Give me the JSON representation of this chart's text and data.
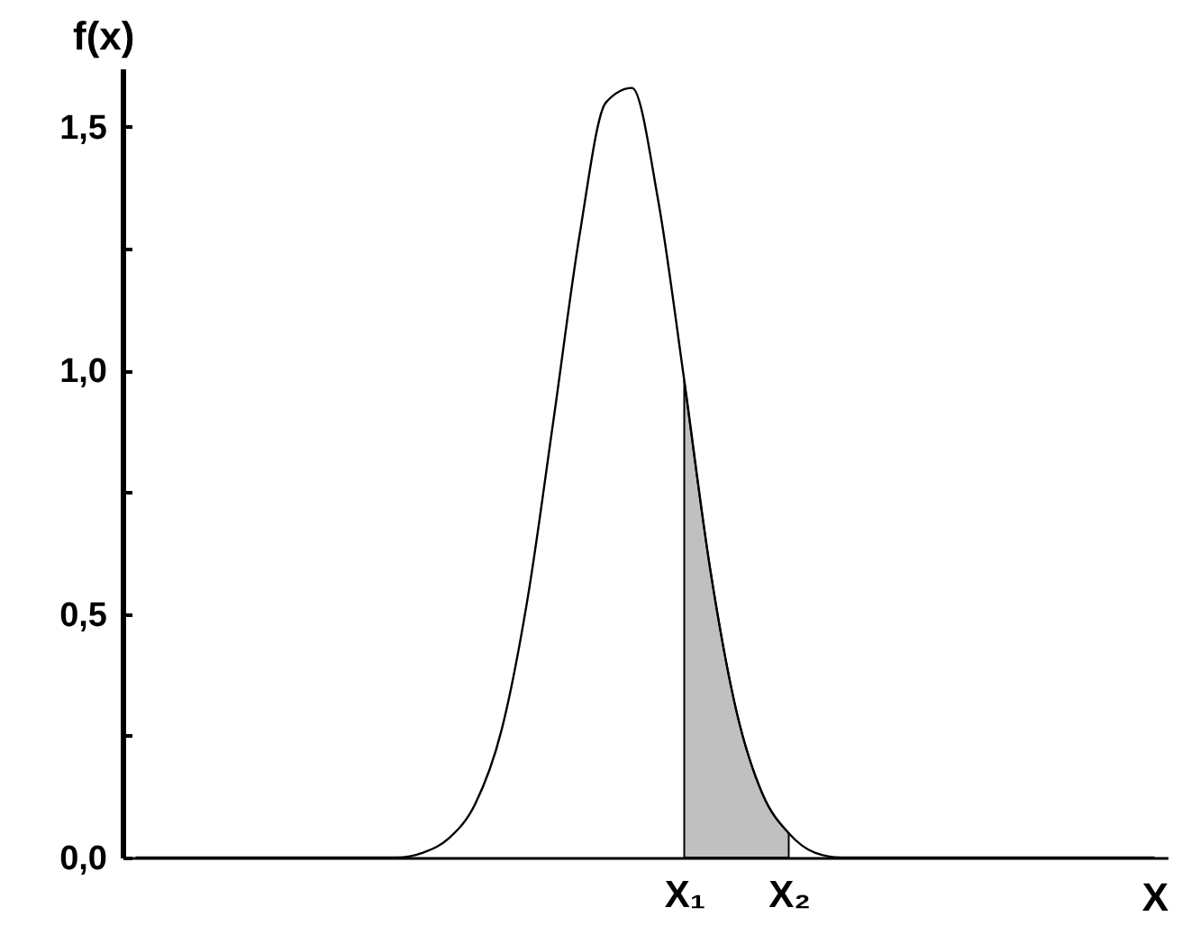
{
  "chart_data": {
    "type": "line",
    "xlabel": "X",
    "ylabel": "f(x)",
    "categories": [
      null,
      null,
      null,
      null,
      null,
      null,
      null,
      null,
      null,
      null,
      null,
      null,
      null,
      null,
      null,
      null,
      null,
      null,
      null,
      null,
      null,
      "X₁",
      null,
      null,
      null,
      "X₂",
      null,
      null,
      null,
      null,
      null,
      null,
      null,
      null,
      null,
      null,
      null,
      null,
      null,
      null
    ],
    "ylim": [
      0,
      1.62
    ],
    "yticks": [
      {
        "value": 0,
        "label": "0,0"
      },
      {
        "value": 0.25,
        "label": null
      },
      {
        "value": 0.5,
        "label": "0,5"
      },
      {
        "value": 0.75,
        "label": null
      },
      {
        "value": 1,
        "label": "1,0"
      },
      {
        "value": 1.25,
        "label": null
      },
      {
        "value": 1.5,
        "label": "1,5"
      }
    ],
    "grid": false,
    "marker": "none",
    "line_style": "solid",
    "series": [
      {
        "type": "area",
        "color": "#c0c0c0",
        "values": [
          null,
          null,
          null,
          null,
          null,
          null,
          null,
          null,
          null,
          null,
          null,
          null,
          null,
          null,
          null,
          null,
          null,
          null,
          null,
          null,
          null,
          0.98,
          0.59,
          0.3,
          0.13,
          0.05,
          null,
          null,
          null,
          null,
          null,
          null,
          null,
          null,
          null,
          null,
          null,
          null,
          null,
          null
        ]
      },
      {
        "color": "#000000",
        "values": [
          0,
          0,
          0,
          0,
          0,
          0,
          0,
          0,
          0,
          0,
          0,
          0.01,
          0.04,
          0.11,
          0.26,
          0.53,
          0.9,
          1.28,
          1.55,
          1.58,
          1.35,
          0.98,
          0.59,
          0.3,
          0.13,
          0.05,
          0.01,
          0,
          0,
          0,
          0,
          0,
          0,
          0,
          0,
          0,
          0,
          0,
          0,
          0
        ]
      }
    ]
  }
}
